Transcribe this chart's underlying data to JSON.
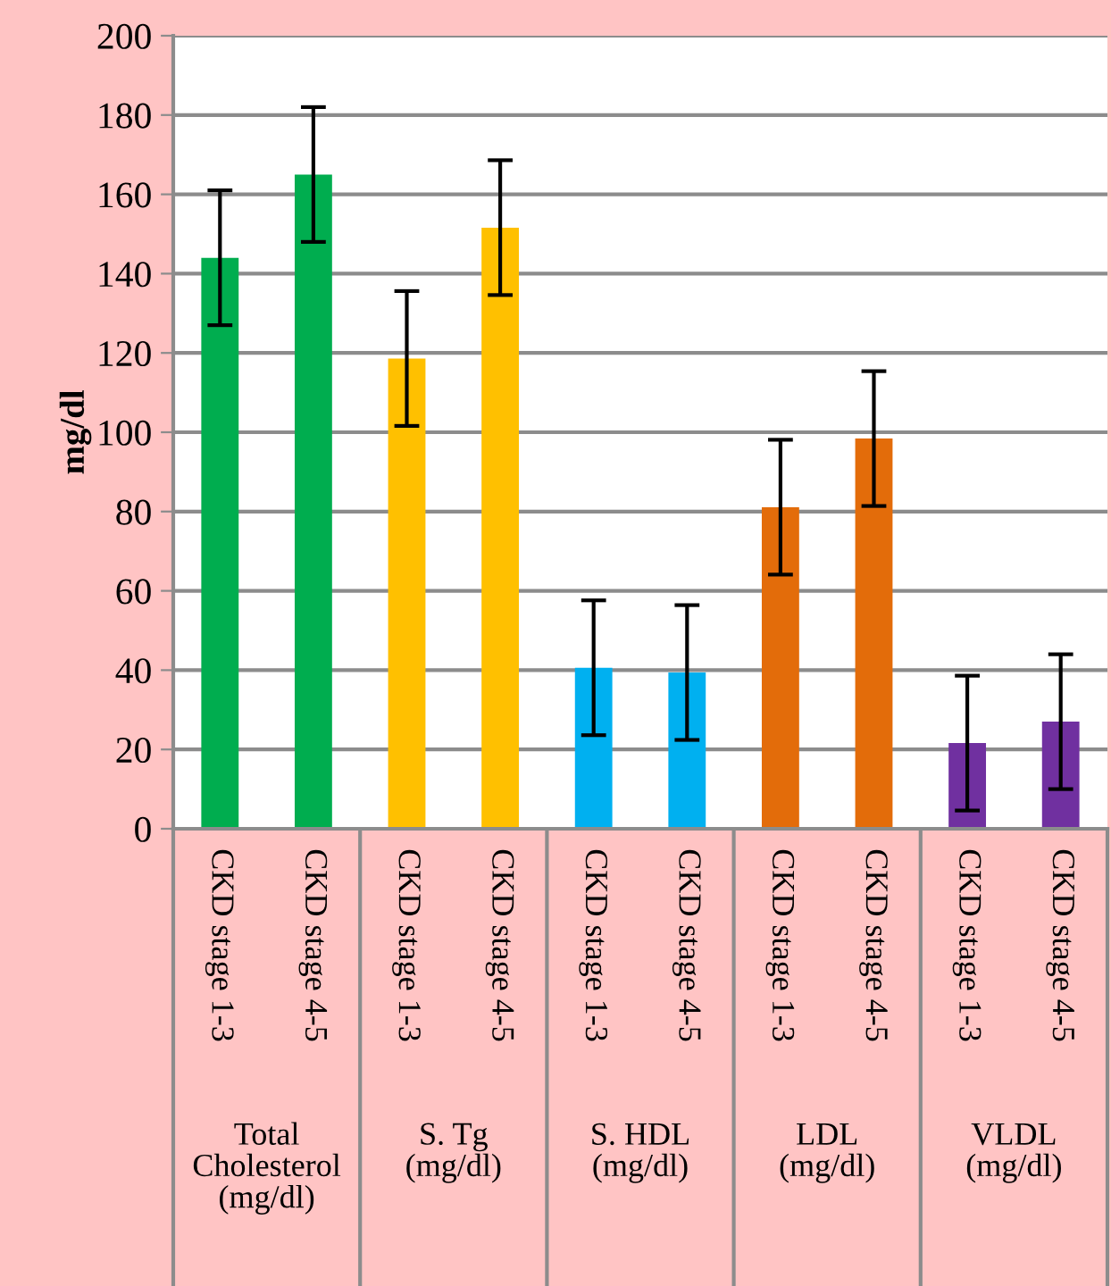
{
  "chart_data": {
    "type": "bar",
    "categories": [
      "CKD stage 1-3",
      "CKD stage 4-5",
      "CKD stage 1-3",
      "CKD stage 4-5",
      "CKD stage 1-3",
      "CKD stage 4-5",
      "CKD stage 1-3",
      "CKD stage 4-5",
      "CKD stage 1-3",
      "CKD stage 4-5"
    ],
    "values": [
      144,
      165,
      118.6,
      151.6,
      40.6,
      39.4,
      81.1,
      98.4,
      21.6,
      27
    ],
    "colors": [
      "#00ad4f",
      "#00ad4f",
      "#ffc000",
      "#ffc000",
      "#00b0f0",
      "#00b0f0",
      "#e36c0a",
      "#e36c0a",
      "#7030a0",
      "#7030a0"
    ],
    "errors": [
      17,
      17,
      17,
      17,
      17,
      17,
      17,
      17,
      17,
      17
    ],
    "ylabel": "mg/dl",
    "ylim": [
      0,
      200
    ],
    "yticks": [
      0,
      20,
      40,
      60,
      80,
      100,
      120,
      140,
      160,
      180,
      200
    ],
    "grid": "y",
    "annotations": [
      "Total\nCholesterol\n(mg/dl)",
      "S. Tg\n(mg/dl)",
      "S. HDL\n(mg/dl)",
      "LDL\n(mg/dl)",
      "VLDL\n(mg/dl)"
    ]
  }
}
